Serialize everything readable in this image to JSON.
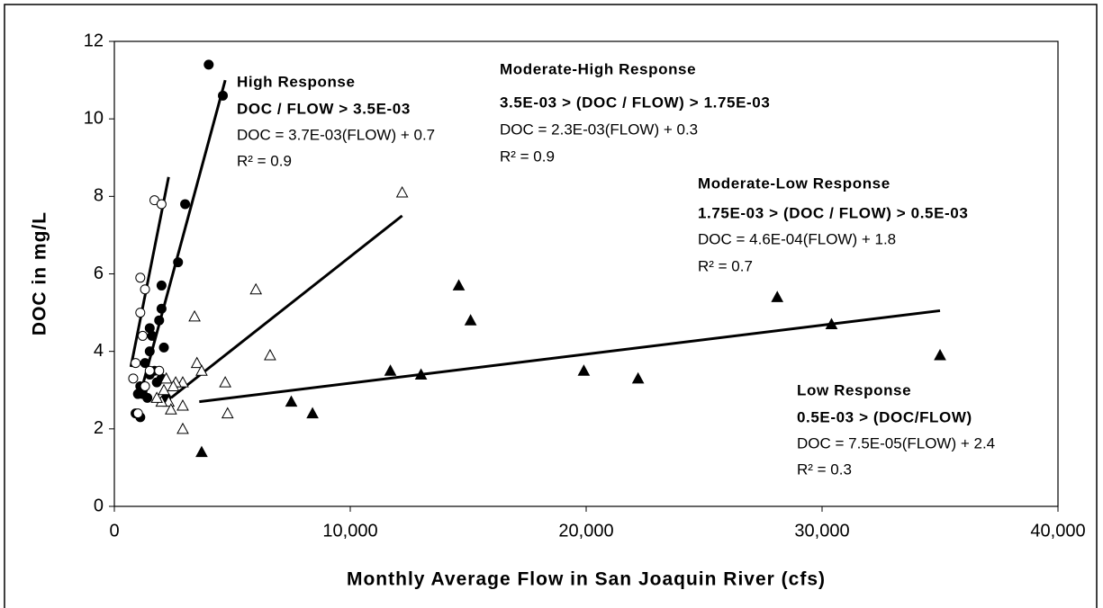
{
  "chart_data": {
    "type": "scatter",
    "x_label": "Monthly Average Flow in San Joaquin River (cfs)",
    "y_label": "DOC in mg/L",
    "xlim": [
      0,
      40000
    ],
    "ylim": [
      0,
      12
    ],
    "xticks": [
      0,
      {
        "value": 10000,
        "label": "10,000"
      },
      {
        "value": 20000,
        "label": "20,000"
      },
      {
        "value": 30000,
        "label": "30,000"
      },
      {
        "value": 40000,
        "label": "40,000"
      }
    ],
    "yticks": [
      0,
      2,
      4,
      6,
      8,
      10,
      12
    ],
    "grid": false,
    "series": [
      {
        "marker": "circle",
        "filled": true,
        "color": "#000000",
        "x": [
          4000,
          4600,
          3000,
          2700,
          2000,
          2000,
          1900,
          2100,
          1500,
          1500,
          1100,
          1000,
          900,
          1100,
          1500,
          1700,
          1300,
          1200,
          1400,
          2000,
          1800,
          2200,
          1600,
          1200
        ],
        "y": [
          11.4,
          10.6,
          7.8,
          6.3,
          5.7,
          5.1,
          4.8,
          4.1,
          4.6,
          4.0,
          3.1,
          2.9,
          2.4,
          2.3,
          3.4,
          3.5,
          3.7,
          3.0,
          2.8,
          3.3,
          3.2,
          2.8,
          4.4,
          2.9
        ]
      },
      {
        "marker": "circle",
        "filled": false,
        "color": "#000000",
        "x": [
          1700,
          2000,
          1100,
          1300,
          1100,
          1200,
          800,
          900,
          1000,
          1300,
          1500,
          1900
        ],
        "y": [
          7.9,
          7.8,
          5.9,
          5.6,
          5.0,
          4.4,
          3.3,
          3.7,
          2.4,
          3.1,
          3.5,
          3.5
        ]
      },
      {
        "marker": "triangle",
        "filled": false,
        "color": "#000000",
        "x": [
          12200,
          6000,
          3400,
          6600,
          3500,
          3700,
          4700,
          2900,
          2600,
          2200,
          2100,
          2300,
          2400,
          2900,
          2000,
          2900,
          4800,
          1800,
          2500
        ],
        "y": [
          8.1,
          5.6,
          4.9,
          3.9,
          3.7,
          3.5,
          3.2,
          3.2,
          3.2,
          3.3,
          3.0,
          2.7,
          2.5,
          2.6,
          2.7,
          2.0,
          2.4,
          2.8,
          3.1
        ]
      },
      {
        "marker": "triangle",
        "filled": true,
        "color": "#000000",
        "x": [
          3700,
          7500,
          8400,
          11700,
          13000,
          14600,
          15100,
          19900,
          22200,
          28100,
          30400,
          35000
        ],
        "y": [
          1.4,
          2.7,
          2.4,
          3.5,
          3.4,
          5.7,
          4.8,
          3.5,
          3.3,
          5.4,
          4.7,
          3.9
        ]
      }
    ],
    "trendlines": [
      {
        "x": [
          700,
          2300
        ],
        "y": [
          3.6,
          8.5
        ]
      },
      {
        "x": [
          1100,
          4700
        ],
        "y": [
          2.9,
          11.0
        ]
      },
      {
        "x": [
          2400,
          12200
        ],
        "y": [
          2.8,
          7.5
        ]
      },
      {
        "x": [
          3600,
          35000
        ],
        "y": [
          2.7,
          5.05
        ]
      }
    ],
    "annotations": [
      {
        "title": "High Response",
        "criterion": "DOC / FLOW > 3.5E-03",
        "equation": "DOC = 3.7E-03(FLOW) + 0.7",
        "r2": "R² = 0.9"
      },
      {
        "title": "Moderate-High Response",
        "criterion": "3.5E-03 > (DOC / FLOW) > 1.75E-03",
        "equation": "DOC = 2.3E-03(FLOW) + 0.3",
        "r2": "R² = 0.9"
      },
      {
        "title": "Moderate-Low Response",
        "criterion": "1.75E-03 > (DOC / FLOW) > 0.5E-03",
        "equation": "DOC = 4.6E-04(FLOW) + 1.8",
        "r2": "R² = 0.7"
      },
      {
        "title": "Low Response",
        "criterion": "0.5E-03 > (DOC/FLOW)",
        "equation": "DOC = 7.5E-05(FLOW) + 2.4",
        "r2": "R² = 0.3"
      }
    ]
  }
}
